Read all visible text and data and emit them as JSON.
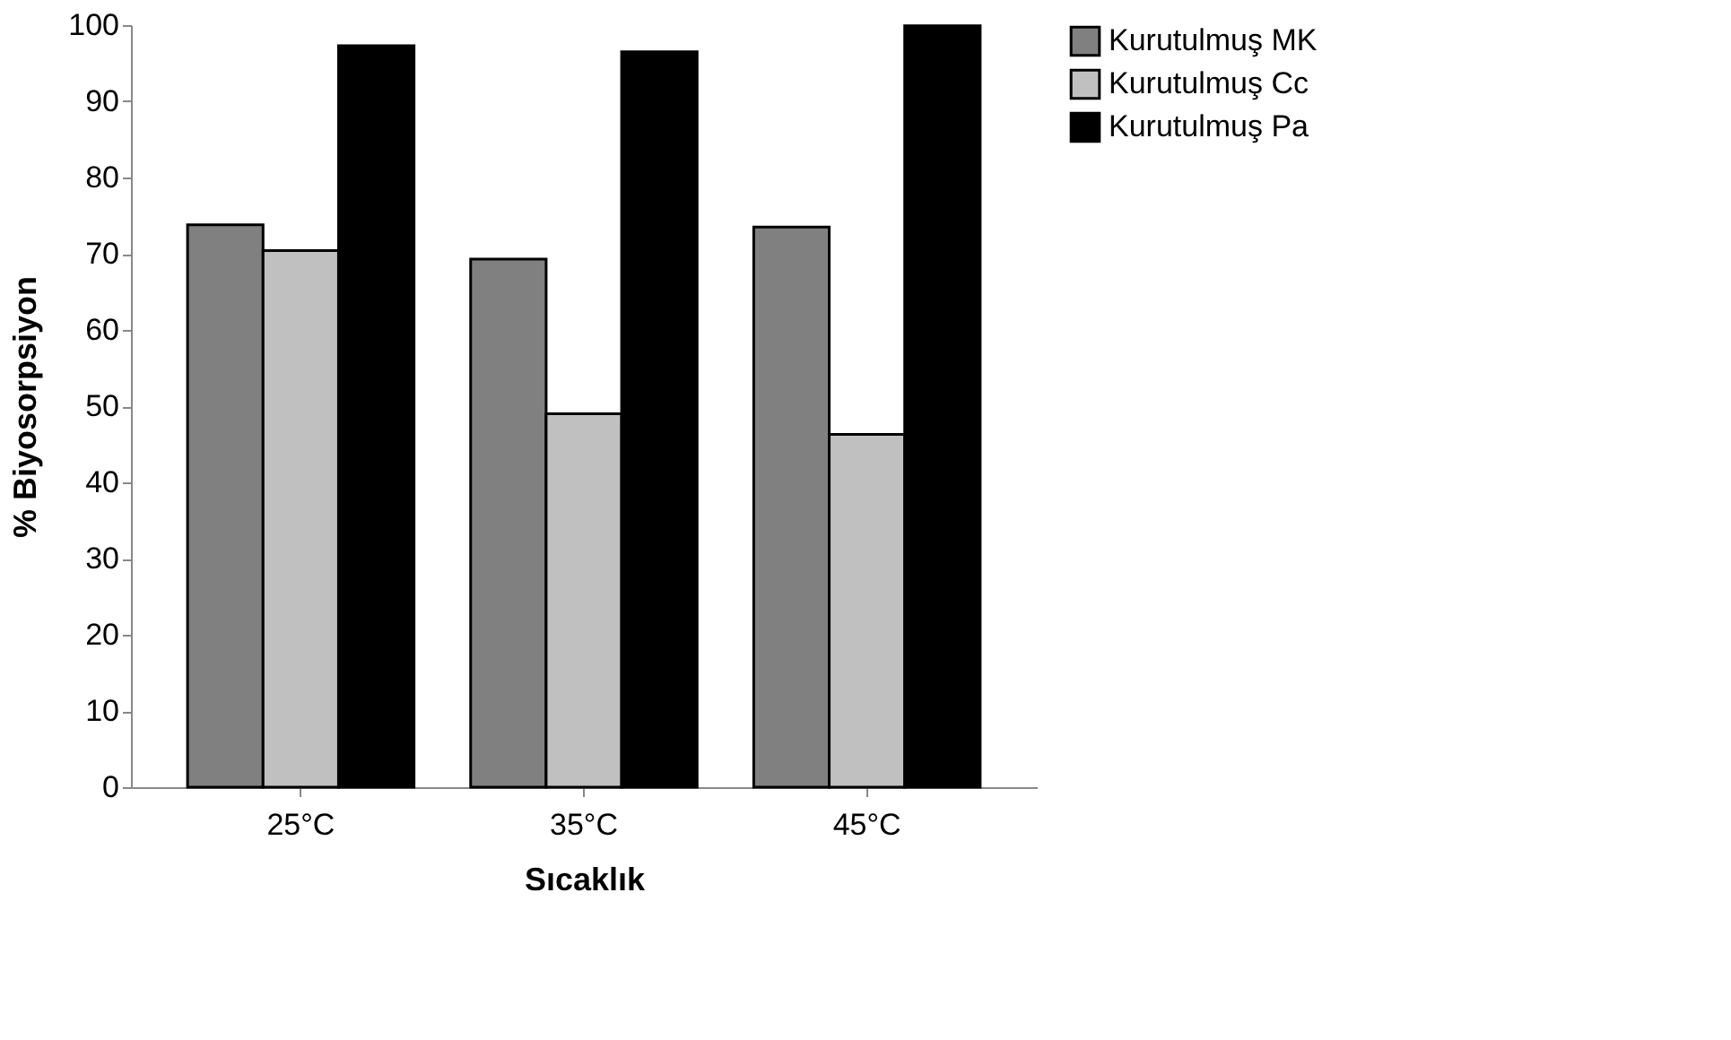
{
  "chart_data": {
    "type": "bar",
    "xlabel": "Sıcaklık",
    "ylabel": "% Biyosorpsiyon",
    "categories": [
      "25°C",
      "35°C",
      "45°C"
    ],
    "series": [
      {
        "name": "Kurutulmuş MK",
        "color": "#808080",
        "values": [
          73.8,
          69.3,
          73.5
        ]
      },
      {
        "name": "Kurutulmuş Cc",
        "color": "#c0c0c0",
        "values": [
          70.4,
          49.0,
          46.3
        ]
      },
      {
        "name": "Kurutulmuş Pa",
        "color": "#000000",
        "values": [
          97.3,
          96.5,
          99.9
        ]
      }
    ],
    "ylim": [
      0,
      100
    ],
    "yticks": [
      0,
      10,
      20,
      30,
      40,
      50,
      60,
      70,
      80,
      90,
      100
    ],
    "grid": false,
    "legend": "right"
  }
}
